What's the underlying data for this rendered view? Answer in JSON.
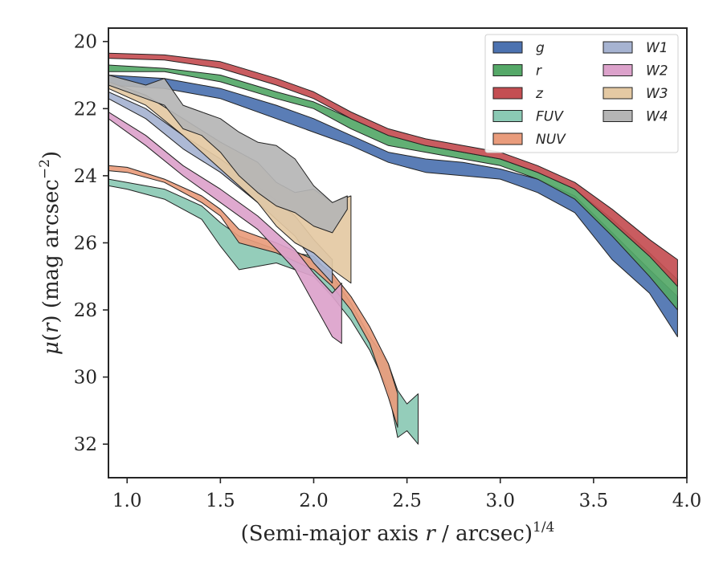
{
  "chart_data": {
    "type": "area",
    "xlabel": "(Semi-major axis r / arcsec)",
    "xlabel_main": "(Semi-major axis ",
    "xlabel_var": "r",
    "xlabel_rest": " / arcsec)",
    "xlabel_sup": "1/4",
    "ylabel_mu": "μ",
    "ylabel_open": "(",
    "ylabel_var": "r",
    "ylabel_close": ") (mag arcsec",
    "ylabel_sup": "−2",
    "ylabel_end": ")",
    "xlim": [
      0.9,
      4.0
    ],
    "ylim": [
      33.0,
      19.6
    ],
    "y_inverted": true,
    "xticks": [
      1.0,
      1.5,
      2.0,
      2.5,
      3.0,
      3.5,
      4.0
    ],
    "xtick_labels": [
      "1.0",
      "1.5",
      "2.0",
      "2.5",
      "3.0",
      "3.5",
      "4.0"
    ],
    "yticks": [
      20,
      22,
      24,
      26,
      28,
      30,
      32
    ],
    "ytick_labels": [
      "20",
      "22",
      "24",
      "26",
      "28",
      "30",
      "32"
    ],
    "grid": false,
    "legend_position": "top-right",
    "legend_columns": 2,
    "series": [
      {
        "name": "g",
        "color": "#4c72b0",
        "x": [
          0.9,
          1.2,
          1.5,
          1.8,
          2.0,
          2.2,
          2.4,
          2.6,
          2.8,
          3.0,
          3.2,
          3.4,
          3.6,
          3.8,
          3.95
        ],
        "low": [
          21.0,
          21.1,
          21.4,
          21.9,
          22.3,
          22.8,
          23.3,
          23.5,
          23.6,
          23.8,
          24.1,
          24.6,
          25.7,
          26.8,
          27.6
        ],
        "high": [
          21.3,
          21.4,
          21.7,
          22.3,
          22.7,
          23.1,
          23.6,
          23.9,
          24.0,
          24.1,
          24.5,
          25.1,
          26.5,
          27.5,
          28.8
        ]
      },
      {
        "name": "r",
        "color": "#55a868",
        "x": [
          0.9,
          1.2,
          1.5,
          1.8,
          2.0,
          2.2,
          2.4,
          2.6,
          2.8,
          3.0,
          3.2,
          3.4,
          3.6,
          3.8,
          3.95
        ],
        "low": [
          20.7,
          20.8,
          21.0,
          21.5,
          21.8,
          22.3,
          22.8,
          23.1,
          23.3,
          23.5,
          23.9,
          24.4,
          25.3,
          26.3,
          27.1
        ],
        "high": [
          20.9,
          20.9,
          21.2,
          21.7,
          22.0,
          22.6,
          23.1,
          23.3,
          23.5,
          23.7,
          24.1,
          24.7,
          25.8,
          27.0,
          28.0
        ]
      },
      {
        "name": "z",
        "color": "#c44e52",
        "x": [
          0.9,
          1.2,
          1.5,
          1.8,
          2.0,
          2.2,
          2.4,
          2.6,
          2.8,
          3.0,
          3.2,
          3.4,
          3.6,
          3.8,
          3.95
        ],
        "low": [
          20.35,
          20.4,
          20.6,
          21.1,
          21.5,
          22.1,
          22.6,
          22.9,
          23.1,
          23.3,
          23.7,
          24.2,
          25.0,
          25.9,
          26.5
        ],
        "high": [
          20.5,
          20.55,
          20.8,
          21.3,
          21.7,
          22.3,
          22.8,
          23.1,
          23.3,
          23.5,
          23.9,
          24.4,
          25.4,
          26.4,
          27.3
        ]
      },
      {
        "name": "FUV",
        "color": "#8bc9b4",
        "x": [
          0.9,
          1.0,
          1.2,
          1.4,
          1.5,
          1.6,
          1.8,
          2.0,
          2.1,
          2.2,
          2.3,
          2.4,
          2.45,
          2.5,
          2.56
        ],
        "low": [
          24.1,
          24.2,
          24.4,
          24.9,
          25.4,
          25.8,
          26.2,
          26.4,
          27.0,
          27.8,
          28.8,
          29.6,
          30.4,
          30.8,
          30.5
        ],
        "high": [
          24.3,
          24.4,
          24.7,
          25.3,
          26.1,
          26.8,
          26.6,
          27.0,
          27.6,
          28.3,
          29.2,
          30.4,
          31.8,
          31.6,
          32.0
        ]
      },
      {
        "name": "NUV",
        "color": "#e99c7c",
        "x": [
          0.9,
          1.0,
          1.2,
          1.4,
          1.5,
          1.6,
          1.8,
          2.0,
          2.1,
          2.2,
          2.3,
          2.4,
          2.45
        ],
        "low": [
          23.7,
          23.75,
          24.1,
          24.6,
          25.0,
          25.6,
          26.0,
          26.5,
          26.9,
          27.6,
          28.5,
          29.6,
          30.5
        ],
        "high": [
          23.85,
          23.9,
          24.2,
          24.8,
          25.2,
          26.0,
          26.3,
          26.8,
          27.3,
          28.0,
          29.0,
          30.6,
          31.5
        ]
      },
      {
        "name": "W1",
        "color": "#a6b3d1",
        "x": [
          0.9,
          1.1,
          1.3,
          1.5,
          1.7,
          1.9,
          2.0,
          2.1
        ],
        "low": [
          21.5,
          22.0,
          22.8,
          23.5,
          24.3,
          25.2,
          25.9,
          26.5
        ],
        "high": [
          21.7,
          22.3,
          23.2,
          23.9,
          24.8,
          25.8,
          26.6,
          27.2
        ]
      },
      {
        "name": "W2",
        "color": "#dca2cb",
        "x": [
          0.9,
          1.1,
          1.3,
          1.5,
          1.7,
          1.9,
          2.0,
          2.1,
          2.15
        ],
        "low": [
          22.1,
          22.8,
          23.7,
          24.4,
          25.2,
          26.2,
          26.9,
          27.5,
          27.2
        ],
        "high": [
          22.3,
          23.1,
          24.0,
          24.8,
          25.6,
          26.8,
          27.8,
          28.8,
          29.0
        ]
      },
      {
        "name": "W3",
        "color": "#e4c9a3",
        "x": [
          0.9,
          1.1,
          1.3,
          1.5,
          1.7,
          1.8,
          1.9,
          2.0,
          2.1,
          2.2
        ],
        "low": [
          21.2,
          21.6,
          22.3,
          23.0,
          23.6,
          24.2,
          24.5,
          24.4,
          24.8,
          24.6
        ],
        "high": [
          21.4,
          21.9,
          22.8,
          23.8,
          24.8,
          25.5,
          26.0,
          26.3,
          26.8,
          27.2
        ]
      },
      {
        "name": "W4",
        "color": "#b5b5b5",
        "x": [
          0.9,
          1.1,
          1.2,
          1.3,
          1.4,
          1.5,
          1.6,
          1.7,
          1.8,
          1.9,
          2.0,
          2.1,
          2.18
        ],
        "low": [
          21.0,
          21.3,
          21.1,
          21.9,
          22.1,
          22.3,
          22.7,
          23.0,
          23.1,
          23.5,
          24.3,
          24.8,
          24.6
        ],
        "high": [
          21.3,
          21.7,
          21.9,
          22.6,
          22.8,
          23.3,
          24.0,
          24.5,
          24.9,
          25.1,
          25.5,
          25.7,
          25.0
        ]
      }
    ]
  }
}
